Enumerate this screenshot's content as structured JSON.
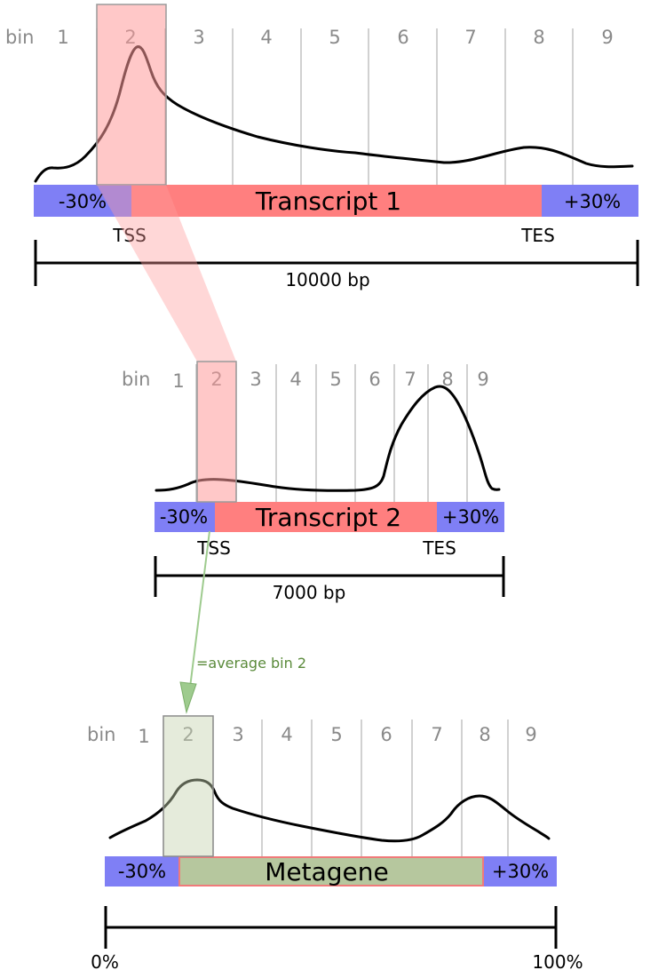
{
  "panel1": {
    "bin_word": "bin",
    "bins": [
      "1",
      "2",
      "3",
      "4",
      "5",
      "6",
      "7",
      "8",
      "9"
    ],
    "upstream_label": "-30%",
    "transcript_label": "Transcript 1",
    "downstream_label": "+30%",
    "tss_label": "TSS",
    "tes_label": "TES",
    "length_label": "10000 bp"
  },
  "panel2": {
    "bin_word": "bin",
    "bins": [
      "1",
      "2",
      "3",
      "4",
      "5",
      "6",
      "7",
      "8",
      "9"
    ],
    "upstream_label": "-30%",
    "transcript_label": "Transcript 2",
    "downstream_label": "+30%",
    "tss_label": "TSS",
    "tes_label": "TES",
    "length_label": "7000 bp"
  },
  "arrow_note": "=average bin 2",
  "panel3": {
    "bin_word": "bin",
    "bins": [
      "1",
      "2",
      "3",
      "4",
      "5",
      "6",
      "7",
      "8",
      "9"
    ],
    "upstream_label": "-30%",
    "transcript_label": "Metagene",
    "downstream_label": "+30%",
    "left_scale_label": "0%",
    "right_scale_label": "100%"
  },
  "colors": {
    "flank": "#7f7ff5",
    "transcript": "#ff7f7f",
    "metagene": "#b6c79e",
    "highlight_red": "#ff9a9a",
    "highlight_green": "#c6d2b0",
    "arrow": "#9ecb8e"
  }
}
